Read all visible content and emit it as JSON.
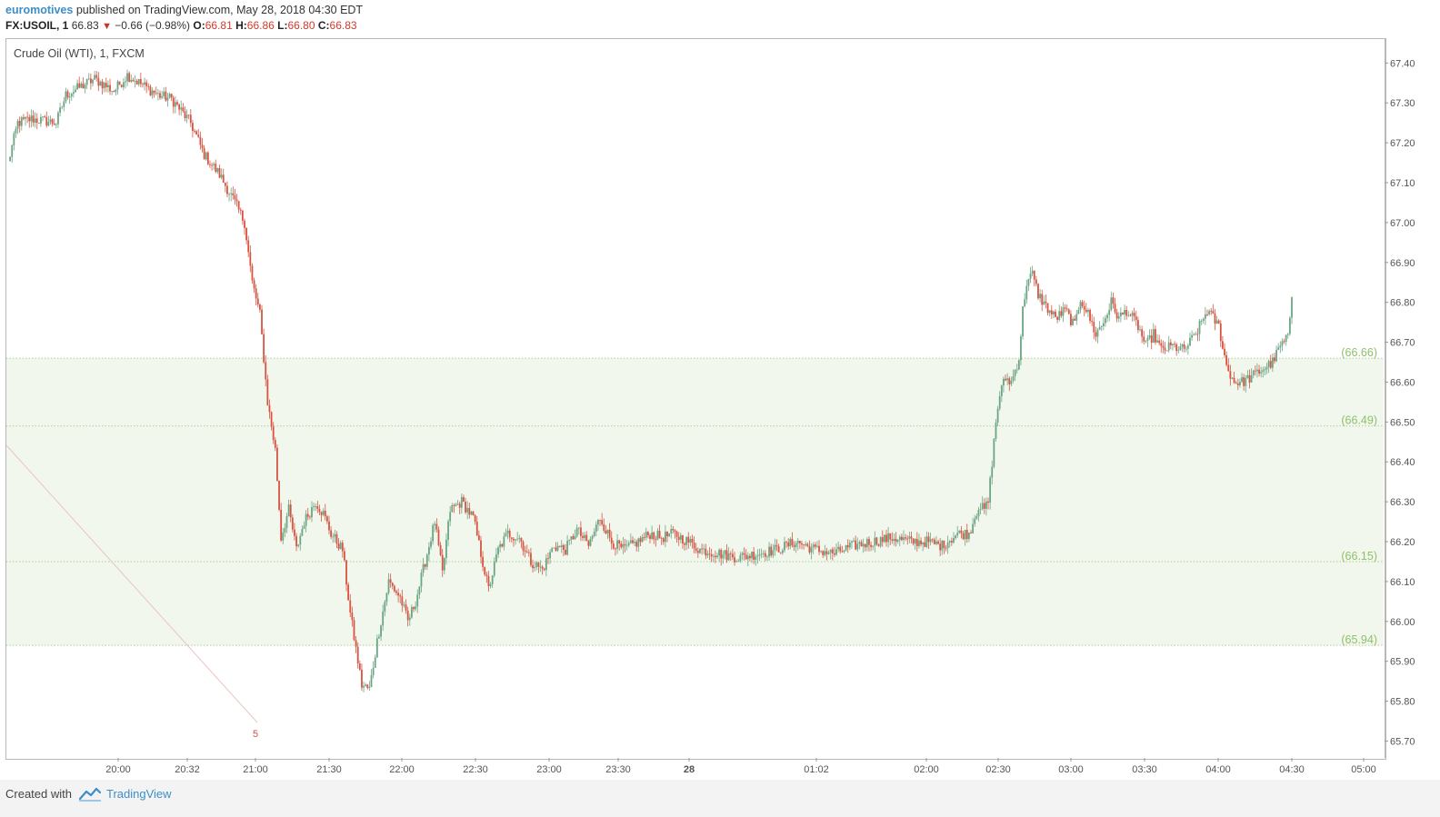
{
  "header": {
    "user": "euromotives",
    "published": "published on TradingView.com, May 28, 2018 04:30 EDT",
    "symbol": "FX:USOIL, 1",
    "last": "66.83",
    "change": "−0.66 (−0.98%)",
    "o_label": "O:",
    "o_value": "66.81",
    "h_label": "H:",
    "h_value": "66.86",
    "l_label": "L:",
    "l_value": "66.80",
    "c_label": "C:",
    "c_value": "66.83"
  },
  "chart_title": "Crude Oil (WTI), 1, FXCM",
  "footer": {
    "created": "Created with",
    "brand": "TradingView"
  },
  "colors": {
    "up": "#6ba583",
    "down": "#d75442",
    "zone": "#f2f7ee",
    "level": "#a9d18e",
    "accent": "#3d8ec9"
  },
  "chart_data": {
    "type": "candlestick",
    "ylim": [
      65.66,
      67.46
    ],
    "y_ticks": [
      "67.40",
      "67.30",
      "67.20",
      "67.10",
      "67.00",
      "66.90",
      "66.80",
      "66.70",
      "66.60",
      "66.50",
      "66.40",
      "66.30",
      "66.20",
      "66.10",
      "66.00",
      "65.90",
      "65.80",
      "65.70"
    ],
    "x_ticks": [
      "20:00",
      "20:32",
      "21:00",
      "21:30",
      "22:00",
      "22:30",
      "23:00",
      "23:30",
      "28",
      "01:02",
      "02:00",
      "02:30",
      "03:00",
      "03:30",
      "04:00",
      "04:30",
      "05:00"
    ],
    "bold_tick": "28",
    "levels": [
      {
        "label": "(66.66)",
        "value": 66.66
      },
      {
        "label": "(66.49)",
        "value": 66.49
      },
      {
        "label": "(66.15)",
        "value": 66.15
      },
      {
        "label": "(65.94)",
        "value": 65.94
      }
    ],
    "zones": [
      [
        66.49,
        66.66
      ],
      [
        65.94,
        66.49
      ]
    ],
    "annotation": "5",
    "path": [
      [
        0,
        67.15
      ],
      [
        5,
        67.25
      ],
      [
        12,
        67.26
      ],
      [
        25,
        67.25
      ],
      [
        30,
        67.32
      ],
      [
        45,
        67.36
      ],
      [
        55,
        67.33
      ],
      [
        62,
        67.37
      ],
      [
        78,
        67.32
      ],
      [
        85,
        67.31
      ],
      [
        95,
        67.25
      ],
      [
        102,
        67.17
      ],
      [
        110,
        67.12
      ],
      [
        118,
        67.05
      ],
      [
        123,
        67.0
      ],
      [
        127,
        66.85
      ],
      [
        131,
        66.77
      ],
      [
        135,
        66.55
      ],
      [
        139,
        66.43
      ],
      [
        142,
        66.21
      ],
      [
        146,
        66.28
      ],
      [
        150,
        66.18
      ],
      [
        154,
        66.25
      ],
      [
        160,
        66.3
      ],
      [
        164,
        66.27
      ],
      [
        168,
        66.22
      ],
      [
        174,
        66.18
      ],
      [
        178,
        66.02
      ],
      [
        182,
        65.9
      ],
      [
        184,
        65.84
      ],
      [
        188,
        65.83
      ],
      [
        192,
        65.95
      ],
      [
        198,
        66.1
      ],
      [
        204,
        66.06
      ],
      [
        208,
        66.0
      ],
      [
        212,
        66.05
      ],
      [
        218,
        66.17
      ],
      [
        222,
        66.25
      ],
      [
        226,
        66.12
      ],
      [
        230,
        66.28
      ],
      [
        236,
        66.3
      ],
      [
        242,
        66.26
      ],
      [
        246,
        66.17
      ],
      [
        250,
        66.08
      ],
      [
        255,
        66.18
      ],
      [
        260,
        66.22
      ],
      [
        266,
        66.21
      ],
      [
        272,
        66.15
      ],
      [
        278,
        66.13
      ],
      [
        284,
        66.19
      ],
      [
        290,
        66.18
      ],
      [
        296,
        66.23
      ],
      [
        302,
        66.19
      ],
      [
        308,
        66.26
      ],
      [
        314,
        66.2
      ],
      [
        320,
        66.18
      ],
      [
        328,
        66.2
      ],
      [
        334,
        66.22
      ],
      [
        340,
        66.21
      ],
      [
        346,
        66.22
      ],
      [
        354,
        66.2
      ],
      [
        360,
        66.18
      ],
      [
        370,
        66.17
      ],
      [
        380,
        66.16
      ],
      [
        390,
        66.17
      ],
      [
        400,
        66.18
      ],
      [
        410,
        66.2
      ],
      [
        420,
        66.18
      ],
      [
        430,
        66.17
      ],
      [
        440,
        66.19
      ],
      [
        450,
        66.2
      ],
      [
        460,
        66.21
      ],
      [
        470,
        66.2
      ],
      [
        478,
        66.2
      ],
      [
        486,
        66.19
      ],
      [
        494,
        66.22
      ],
      [
        500,
        66.22
      ],
      [
        505,
        66.29
      ],
      [
        508,
        66.28
      ],
      [
        510,
        66.3
      ],
      [
        512,
        66.4
      ],
      [
        514,
        66.5
      ],
      [
        516,
        66.57
      ],
      [
        519,
        66.61
      ],
      [
        522,
        66.6
      ],
      [
        526,
        66.66
      ],
      [
        528,
        66.78
      ],
      [
        530,
        66.85
      ],
      [
        533,
        66.87
      ],
      [
        536,
        66.82
      ],
      [
        540,
        66.79
      ],
      [
        545,
        66.76
      ],
      [
        550,
        66.78
      ],
      [
        555,
        66.74
      ],
      [
        558,
        66.81
      ],
      [
        562,
        66.77
      ],
      [
        566,
        66.72
      ],
      [
        570,
        66.75
      ],
      [
        574,
        66.8
      ],
      [
        578,
        66.76
      ],
      [
        582,
        66.78
      ],
      [
        588,
        66.74
      ],
      [
        592,
        66.69
      ],
      [
        596,
        66.72
      ],
      [
        600,
        66.68
      ],
      [
        606,
        66.69
      ],
      [
        612,
        66.68
      ],
      [
        618,
        66.72
      ],
      [
        624,
        66.78
      ],
      [
        630,
        66.74
      ],
      [
        634,
        66.64
      ],
      [
        638,
        66.6
      ],
      [
        642,
        66.6
      ],
      [
        646,
        66.61
      ],
      [
        652,
        66.63
      ],
      [
        658,
        66.65
      ],
      [
        662,
        66.69
      ],
      [
        666,
        66.71
      ],
      [
        668,
        66.82
      ]
    ]
  }
}
